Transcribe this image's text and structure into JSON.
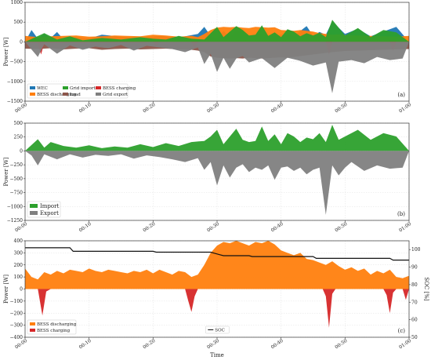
{
  "chart_data": [
    {
      "type": "area",
      "panel_label": "(a)",
      "ylabel": "Power [W]",
      "ylim": [
        -1500,
        1000
      ],
      "yticks": [
        -1500,
        -1000,
        -500,
        0,
        500,
        1000
      ],
      "x_ticks": [
        "00:00",
        "00:10",
        "00:20",
        "00:30",
        "00:40",
        "00:50",
        "01:00"
      ],
      "legend_position": "lower-left",
      "series": [
        {
          "name": "WEC",
          "color": "#1f77b4",
          "x": [
            0,
            1,
            2,
            3,
            4,
            5,
            6,
            8,
            10,
            12,
            15,
            18,
            21,
            24,
            27,
            28,
            29,
            30,
            31,
            32,
            33,
            35,
            37,
            39,
            40,
            42,
            44,
            45,
            46,
            47,
            48,
            50,
            52,
            54,
            56,
            58,
            60
          ],
          "y": [
            0,
            300,
            80,
            200,
            100,
            250,
            60,
            120,
            90,
            180,
            130,
            100,
            150,
            110,
            200,
            380,
            150,
            90,
            280,
            120,
            300,
            160,
            210,
            130,
            190,
            150,
            400,
            150,
            250,
            180,
            520,
            200,
            330,
            140,
            260,
            380,
            0
          ]
        },
        {
          "name": "BESS discharging",
          "color": "#ff7f0e",
          "x": [
            0,
            2,
            4,
            6,
            8,
            10,
            12,
            14,
            16,
            18,
            20,
            22,
            24,
            26,
            27,
            28,
            29,
            30,
            31,
            32,
            33,
            34,
            35,
            36,
            37,
            38,
            39,
            40,
            41,
            42,
            43,
            44,
            45,
            46,
            47,
            48,
            49,
            50,
            52,
            54,
            56,
            58,
            60
          ],
          "y": [
            150,
            120,
            140,
            150,
            160,
            130,
            140,
            160,
            150,
            140,
            180,
            160,
            130,
            150,
            120,
            200,
            300,
            360,
            380,
            370,
            380,
            360,
            350,
            380,
            370,
            360,
            370,
            300,
            290,
            280,
            300,
            280,
            260,
            220,
            200,
            180,
            190,
            170,
            160,
            150,
            140,
            130,
            150
          ]
        },
        {
          "name": "Grid import",
          "color": "#2ca02c",
          "x": [
            0,
            3,
            5,
            7,
            9,
            12,
            15,
            18,
            20,
            22,
            24,
            26,
            28,
            30,
            31,
            32,
            33,
            34,
            35,
            36,
            37,
            38,
            39,
            40,
            41,
            42,
            43,
            44,
            45,
            46,
            47,
            48,
            50,
            52,
            54,
            56,
            58,
            60
          ],
          "y": [
            0,
            220,
            60,
            140,
            40,
            100,
            60,
            120,
            80,
            60,
            150,
            80,
            60,
            380,
            120,
            260,
            400,
            300,
            160,
            180,
            420,
            150,
            240,
            120,
            320,
            260,
            140,
            220,
            160,
            230,
            120,
            560,
            160,
            350,
            120,
            300,
            240,
            0
          ]
        },
        {
          "name": "Load",
          "color": "#8c564b",
          "x": [
            0,
            2,
            4,
            6,
            8,
            10,
            12,
            14,
            16,
            18,
            20,
            22,
            24,
            26,
            27,
            28,
            29,
            30,
            31,
            32,
            33,
            34,
            35,
            36,
            37,
            38,
            39,
            40,
            41,
            42,
            43,
            44,
            45,
            46,
            47,
            48,
            50,
            52,
            54,
            56,
            58,
            60
          ],
          "y": [
            -170,
            -180,
            -160,
            -190,
            -170,
            -160,
            -200,
            -180,
            -170,
            -190,
            -180,
            -170,
            -190,
            -200,
            -220,
            -260,
            -370,
            -400,
            -410,
            -420,
            -410,
            -420,
            -400,
            -410,
            -420,
            -410,
            -400,
            -390,
            -400,
            -380,
            -360,
            -340,
            -320,
            -300,
            -280,
            -260,
            -230,
            -220,
            -210,
            -200,
            -190,
            -180
          ]
        },
        {
          "name": "BESS charging",
          "color": "#d62728",
          "x": [
            0,
            2,
            2.5,
            3,
            20,
            20.5,
            21,
            26,
            26.5,
            27,
            47,
            47.5,
            48,
            57,
            57.5,
            58,
            60
          ],
          "y": [
            0,
            -30,
            -320,
            -30,
            0,
            -120,
            0,
            0,
            -180,
            0,
            0,
            -320,
            0,
            0,
            -220,
            0,
            0
          ]
        },
        {
          "name": "Grid export",
          "color": "#7f7f7f",
          "x": [
            0,
            2,
            3,
            5,
            7,
            9,
            11,
            13,
            15,
            17,
            19,
            21,
            23,
            25,
            27,
            28,
            29,
            30,
            31,
            32,
            33,
            34,
            35,
            37,
            39,
            41,
            43,
            45,
            47,
            48,
            49,
            51,
            53,
            55,
            57,
            59,
            60
          ],
          "y": [
            0,
            -380,
            -60,
            -300,
            -90,
            -200,
            -120,
            -160,
            -80,
            -220,
            -100,
            -140,
            -180,
            -260,
            -140,
            -560,
            -300,
            -760,
            -400,
            -680,
            -420,
            -360,
            -520,
            -410,
            -660,
            -400,
            -480,
            -600,
            -520,
            -1300,
            -500,
            -460,
            -540,
            -380,
            -460,
            -420,
            0
          ]
        }
      ]
    },
    {
      "type": "area",
      "panel_label": "(b)",
      "ylabel": "Power [W]",
      "ylim": [
        -1250,
        500
      ],
      "yticks": [
        -1250,
        -1000,
        -750,
        -500,
        -250,
        0,
        250,
        500
      ],
      "x_ticks": [
        "00:00",
        "00:10",
        "00:20",
        "00:30",
        "00:40",
        "00:50",
        "01:00"
      ],
      "legend_position": "lower-left",
      "series": [
        {
          "name": "Import",
          "color": "#2ca02c",
          "x": [
            0,
            2,
            3,
            4,
            6,
            8,
            10,
            12,
            14,
            16,
            18,
            20,
            22,
            24,
            26,
            28,
            29,
            30,
            31,
            32,
            33,
            34,
            35,
            36,
            37,
            38,
            39,
            40,
            41,
            42,
            43,
            44,
            45,
            46,
            47,
            48,
            49,
            50,
            52,
            54,
            56,
            58,
            60
          ],
          "y": [
            0,
            210,
            60,
            160,
            90,
            60,
            100,
            50,
            80,
            60,
            120,
            70,
            140,
            90,
            160,
            180,
            260,
            380,
            120,
            260,
            400,
            200,
            160,
            180,
            440,
            180,
            300,
            120,
            320,
            260,
            160,
            240,
            210,
            320,
            160,
            470,
            200,
            260,
            380,
            200,
            320,
            260,
            0
          ]
        },
        {
          "name": "Export",
          "color": "#7f7f7f",
          "x": [
            0,
            1,
            2,
            3,
            5,
            7,
            9,
            11,
            13,
            15,
            17,
            19,
            21,
            23,
            25,
            27,
            28,
            29,
            30,
            31,
            32,
            33,
            34,
            35,
            36,
            37,
            38,
            39,
            40,
            41,
            42,
            43,
            44,
            45,
            46,
            47,
            48,
            49,
            50,
            51,
            53,
            55,
            57,
            59,
            60
          ],
          "y": [
            0,
            -80,
            -260,
            -60,
            -150,
            -60,
            -120,
            -70,
            -90,
            -60,
            -140,
            -80,
            -110,
            -150,
            -200,
            -130,
            -340,
            -200,
            -620,
            -260,
            -480,
            -300,
            -240,
            -380,
            -300,
            -340,
            -260,
            -520,
            -300,
            -280,
            -360,
            -300,
            -420,
            -340,
            -300,
            -1150,
            -260,
            -440,
            -300,
            -200,
            -360,
            -260,
            -320,
            -300,
            0
          ]
        }
      ]
    },
    {
      "type": "area",
      "panel_label": "(c)",
      "ylabel": "Power [W]",
      "ylabel2": "SOC [%]",
      "xlabel": "Time",
      "ylim": [
        -400,
        400
      ],
      "yticks": [
        -400,
        -300,
        -200,
        -100,
        0,
        100,
        200,
        300,
        400
      ],
      "y2lim": [
        50,
        105
      ],
      "y2ticks": [
        50,
        60,
        70,
        80,
        90,
        100
      ],
      "x_ticks": [
        "00:00",
        "00:10",
        "00:20",
        "00:30",
        "00:40",
        "00:50",
        "01:00"
      ],
      "legend_position": "lower-left",
      "series": [
        {
          "name": "BESS discharging",
          "color": "#ff7f0e",
          "x": [
            0,
            1,
            2,
            3,
            4,
            5,
            6,
            7,
            8,
            9,
            10,
            11,
            12,
            13,
            14,
            15,
            16,
            17,
            18,
            19,
            20,
            21,
            22,
            23,
            24,
            25,
            26,
            27,
            28,
            29,
            30,
            31,
            32,
            33,
            34,
            35,
            36,
            37,
            38,
            39,
            40,
            41,
            42,
            43,
            44,
            45,
            46,
            47,
            48,
            49,
            50,
            51,
            52,
            53,
            54,
            55,
            56,
            57,
            58,
            59,
            60
          ],
          "y": [
            170,
            100,
            80,
            140,
            120,
            150,
            130,
            160,
            150,
            140,
            170,
            150,
            140,
            160,
            150,
            140,
            130,
            150,
            140,
            160,
            130,
            160,
            140,
            120,
            150,
            140,
            100,
            120,
            200,
            300,
            360,
            390,
            380,
            400,
            380,
            360,
            390,
            380,
            400,
            370,
            320,
            300,
            280,
            300,
            250,
            240,
            220,
            200,
            230,
            190,
            160,
            180,
            150,
            170,
            120,
            150,
            130,
            160,
            100,
            90,
            110
          ]
        },
        {
          "name": "BESS charging",
          "color": "#d62728",
          "x": [
            0,
            2,
            2.7,
            3.3,
            4,
            25,
            25.5,
            26,
            26.5,
            27,
            46.5,
            47,
            47.5,
            48,
            48.5,
            56,
            56.5,
            57,
            57.5,
            58,
            59,
            59.5,
            60
          ],
          "y": [
            0,
            0,
            -220,
            -20,
            0,
            0,
            -100,
            -190,
            -60,
            0,
            0,
            -60,
            -320,
            -40,
            0,
            0,
            -50,
            -200,
            -30,
            0,
            0,
            -90,
            0
          ]
        },
        {
          "name": "SOC",
          "color": "#111111",
          "axis": "right",
          "x": [
            0,
            7,
            7.5,
            20,
            20.5,
            29,
            29.5,
            30,
            30.5,
            31,
            35,
            35.5,
            45,
            45.5,
            57,
            57.5,
            60
          ],
          "y": [
            101,
            101,
            99,
            99,
            98.5,
            98.5,
            98,
            97.5,
            97,
            96.5,
            96.5,
            96,
            96,
            95,
            95,
            94,
            94
          ]
        }
      ]
    }
  ]
}
